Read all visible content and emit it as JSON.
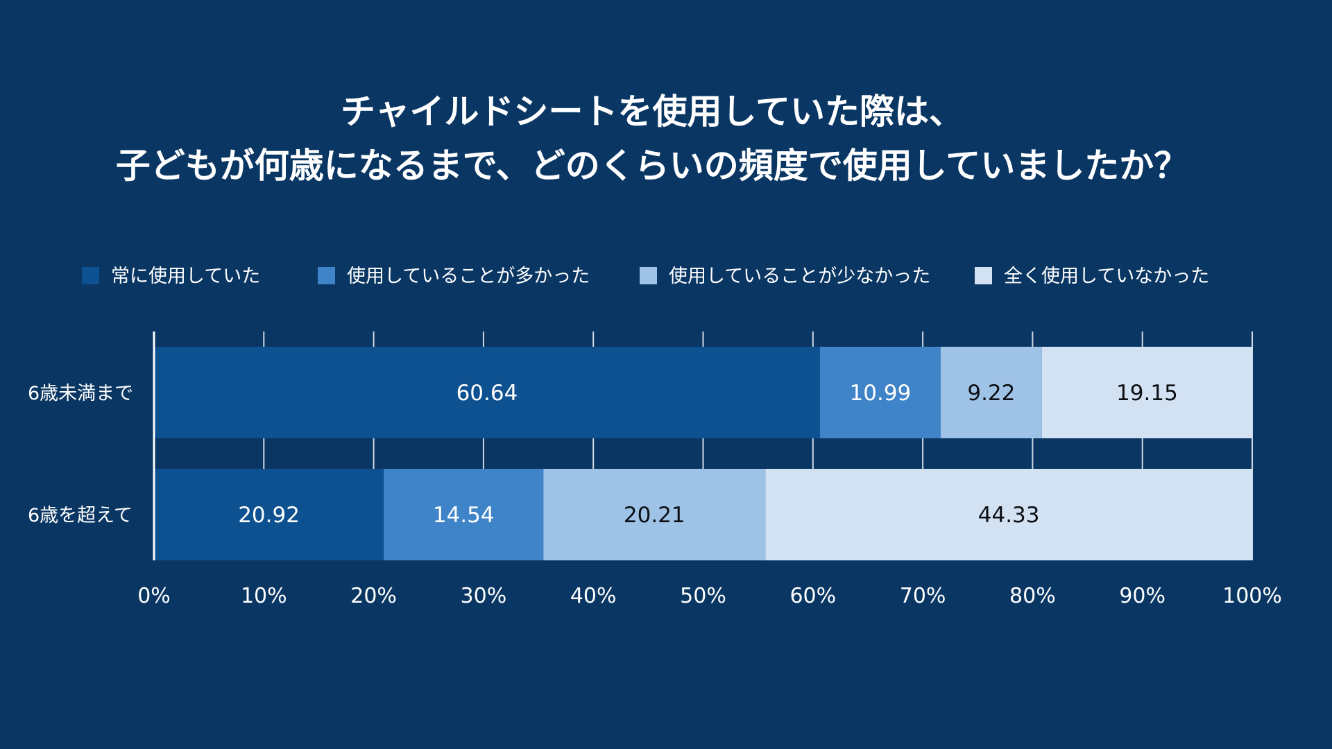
{
  "chart_data": {
    "type": "bar",
    "orientation": "horizontal",
    "stacked": true,
    "title": [
      "チャイルドシートを使用していた際は、",
      "子どもが何歳になるまで、どのくらいの頻度で使用していましたか？"
    ],
    "categories": [
      "6歳未満まで",
      "6歳を超えて"
    ],
    "series": [
      {
        "name": "常に使用していた",
        "color": "#0d5191",
        "label_color": "#ffffff",
        "values": [
          60.64,
          20.92
        ]
      },
      {
        "name": "使用していることが多かった",
        "color": "#3f84c8",
        "label_color": "#ffffff",
        "values": [
          10.99,
          14.54
        ]
      },
      {
        "name": "使用していることが少なかった",
        "color": "#9fc3e7",
        "label_color": "#0b0f14",
        "values": [
          9.22,
          20.21
        ]
      },
      {
        "name": "全く使用していなかった",
        "color": "#d3e2f3",
        "label_color": "#0b0f14",
        "values": [
          19.15,
          44.33
        ]
      }
    ],
    "x_ticks": [
      "0%",
      "10%",
      "20%",
      "30%",
      "40%",
      "50%",
      "60%",
      "70%",
      "80%",
      "90%",
      "100%"
    ],
    "xlim": [
      0,
      100
    ],
    "grid": true,
    "legend": "top"
  }
}
